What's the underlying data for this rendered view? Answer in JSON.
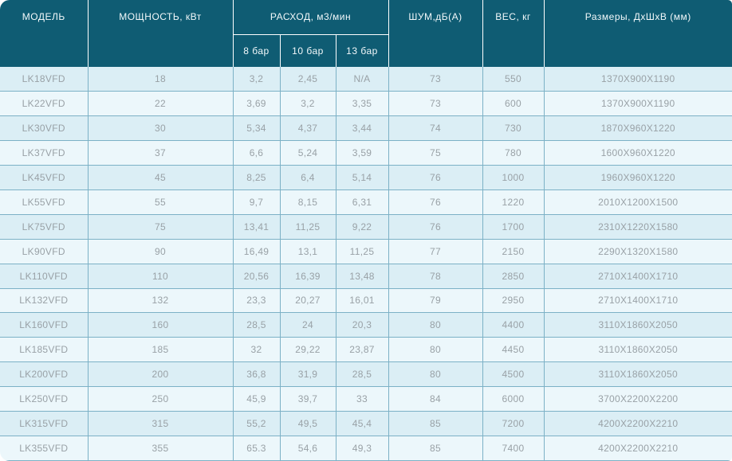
{
  "colors": {
    "header_bg": "#0f5c73",
    "header_text": "#f2f8fa",
    "row_odd_bg": "#dbeef5",
    "row_even_bg": "#ecf7fb",
    "cell_border": "#7cb1c6",
    "cell_text": "#99a1a6"
  },
  "chart_data": {
    "type": "table",
    "title": "",
    "header": {
      "model": "МОДЕЛЬ",
      "power": "МОЩНОСТЬ, кВт",
      "flow_group": "РАСХОД, м3/мин",
      "flow_sub": [
        "8 бар",
        "10 бар",
        "13 бар"
      ],
      "noise": "ШУМ,дБ(А)",
      "weight": "ВЕС, кг",
      "dimensions": "Размеры, ДхШхВ (мм)"
    },
    "rows": [
      [
        "LK18VFD",
        "18",
        "3,2",
        "2,45",
        "N/A",
        "73",
        "550",
        "1370X900X1190"
      ],
      [
        "LK22VFD",
        "22",
        "3,69",
        "3,2",
        "3,35",
        "73",
        "600",
        "1370X900X1190"
      ],
      [
        "LK30VFD",
        "30",
        "5,34",
        "4,37",
        "3,44",
        "74",
        "730",
        "1870X960X1220"
      ],
      [
        "LK37VFD",
        "37",
        "6,6",
        "5,24",
        "3,59",
        "75",
        "780",
        "1600X960X1220"
      ],
      [
        "LK45VFD",
        "45",
        "8,25",
        "6,4",
        "5,14",
        "76",
        "1000",
        "1960X960X1220"
      ],
      [
        "LK55VFD",
        "55",
        "9,7",
        "8,15",
        "6,31",
        "76",
        "1220",
        "2010X1200X1500"
      ],
      [
        "LK75VFD",
        "75",
        "13,41",
        "11,25",
        "9,22",
        "76",
        "1700",
        "2310X1220X1580"
      ],
      [
        "LK90VFD",
        "90",
        "16,49",
        "13,1",
        "11,25",
        "77",
        "2150",
        "2290X1320X1580"
      ],
      [
        "LK110VFD",
        "110",
        "20,56",
        "16,39",
        "13,48",
        "78",
        "2850",
        "2710X1400X1710"
      ],
      [
        "LK132VFD",
        "132",
        "23,3",
        "20,27",
        "16,01",
        "79",
        "2950",
        "2710X1400X1710"
      ],
      [
        "LK160VFD",
        "160",
        "28,5",
        "24",
        "20,3",
        "80",
        "4400",
        "3110X1860X2050"
      ],
      [
        "LK185VFD",
        "185",
        "32",
        "29,22",
        "23,87",
        "80",
        "4450",
        "3110X1860X2050"
      ],
      [
        "LK200VFD",
        "200",
        "36,8",
        "31,9",
        "28,5",
        "80",
        "4500",
        "3110X1860X2050"
      ],
      [
        "LK250VFD",
        "250",
        "45,9",
        "39,7",
        "33",
        "84",
        "6000",
        "3700X2200X2200"
      ],
      [
        "LK315VFD",
        "315",
        "55,2",
        "49,5",
        "45,4",
        "85",
        "7200",
        "4200X2200X2210"
      ],
      [
        "LK355VFD",
        "355",
        "65.3",
        "54,6",
        "49,3",
        "85",
        "7400",
        "4200X2200X2210"
      ]
    ]
  }
}
